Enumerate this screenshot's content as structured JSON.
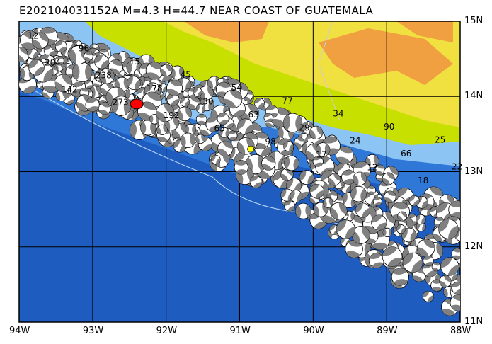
{
  "title": "E202104031152A M=4.3 H=44.7 NEAR COAST OF GUATEMALA",
  "map": {
    "lon_labels": [
      "94W",
      "93W",
      "92W",
      "91W",
      "90W",
      "89W",
      "88W"
    ],
    "lat_labels": [
      "15N",
      "14N",
      "13N",
      "12N",
      "11N"
    ],
    "lon_range": [
      -94,
      -88
    ],
    "lat_range": [
      11,
      15
    ],
    "colors": {
      "deep_ocean": "#1e5cc0",
      "mid_ocean": "#2f78d8",
      "shelf": "#8cc4f4",
      "land_low": "#c8e000",
      "land_mid": "#f0e040",
      "land_high": "#f0a040",
      "grid": "#000000",
      "event": "#ff0000",
      "station": "#ffff00"
    },
    "main_event": {
      "lon": -92.4,
      "lat": 13.9
    },
    "marker": {
      "lon": -90.85,
      "lat": 13.3
    },
    "visible_depth_labels": [
      "12",
      "204",
      "142",
      "96",
      "238",
      "273",
      "15",
      "178",
      "192",
      "45",
      "130",
      "65",
      "54",
      "63",
      "98",
      "77",
      "29",
      "17",
      "34",
      "24",
      "12",
      "90",
      "66",
      "18",
      "25",
      "22"
    ]
  }
}
